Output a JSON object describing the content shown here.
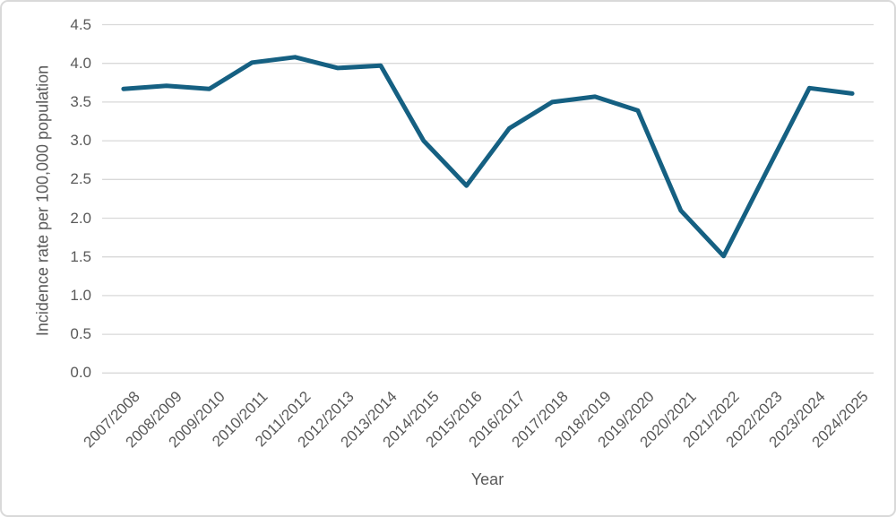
{
  "chart_data": {
    "type": "line",
    "title": "",
    "xlabel": "Year",
    "ylabel": "Incidence rate per 100,000 population",
    "categories": [
      "2007/2008",
      "2008/2009",
      "2009/2010",
      "2010/2011",
      "2011/2012",
      "2012/2013",
      "2013/2014",
      "2014/2015",
      "2015/2016",
      "2016/2017",
      "2017/2018",
      "2018/2019",
      "2019/2020",
      "2020/2021",
      "2021/2022",
      "2022/2023",
      "2023/2024",
      "2024/2025"
    ],
    "values": [
      3.67,
      3.71,
      3.67,
      4.01,
      4.08,
      3.94,
      3.97,
      3.0,
      2.42,
      3.16,
      3.5,
      3.57,
      3.39,
      2.1,
      1.51,
      2.6,
      3.68,
      3.61
    ],
    "ylim": [
      0,
      4.5
    ],
    "ytick_labels": [
      "0.0",
      "0.5",
      "1.0",
      "1.5",
      "2.0",
      "2.5",
      "3.0",
      "3.5",
      "4.0",
      "4.5"
    ],
    "grid": "horizontal",
    "legend": "none",
    "xtick_rotation_deg": 45,
    "colors": {
      "line": "#156082",
      "gridline": "#D9D9D9",
      "axis_text": "#595959",
      "frame_border": "#D9D9D9",
      "background": "#FFFFFF"
    }
  }
}
